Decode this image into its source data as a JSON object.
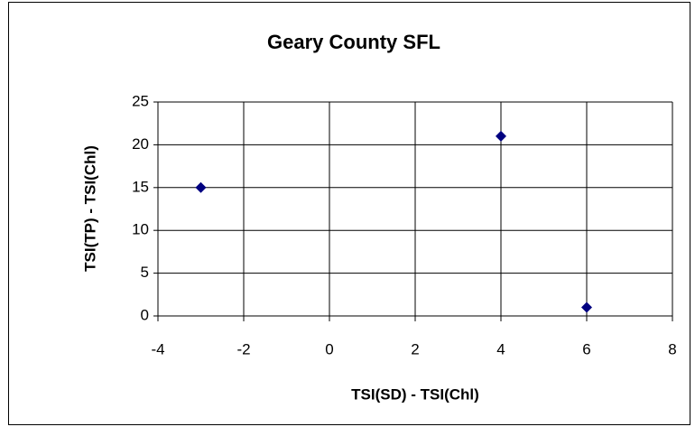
{
  "chart_data": {
    "type": "scatter",
    "title": "Geary County SFL",
    "x_label": "TSI(SD) - TSI(Chl)",
    "y_label": "TSI(TP) - TSI(Chl)",
    "x": [
      -3,
      4,
      6
    ],
    "values": [
      15,
      21,
      1
    ],
    "color": "#000080",
    "xlim": [
      -4,
      8
    ],
    "xticks": [
      -4,
      -2,
      0,
      2,
      4,
      6,
      8
    ],
    "ylim": [
      0,
      25
    ],
    "yticks": [
      0,
      5,
      10,
      15,
      20,
      25
    ],
    "grid": true
  }
}
